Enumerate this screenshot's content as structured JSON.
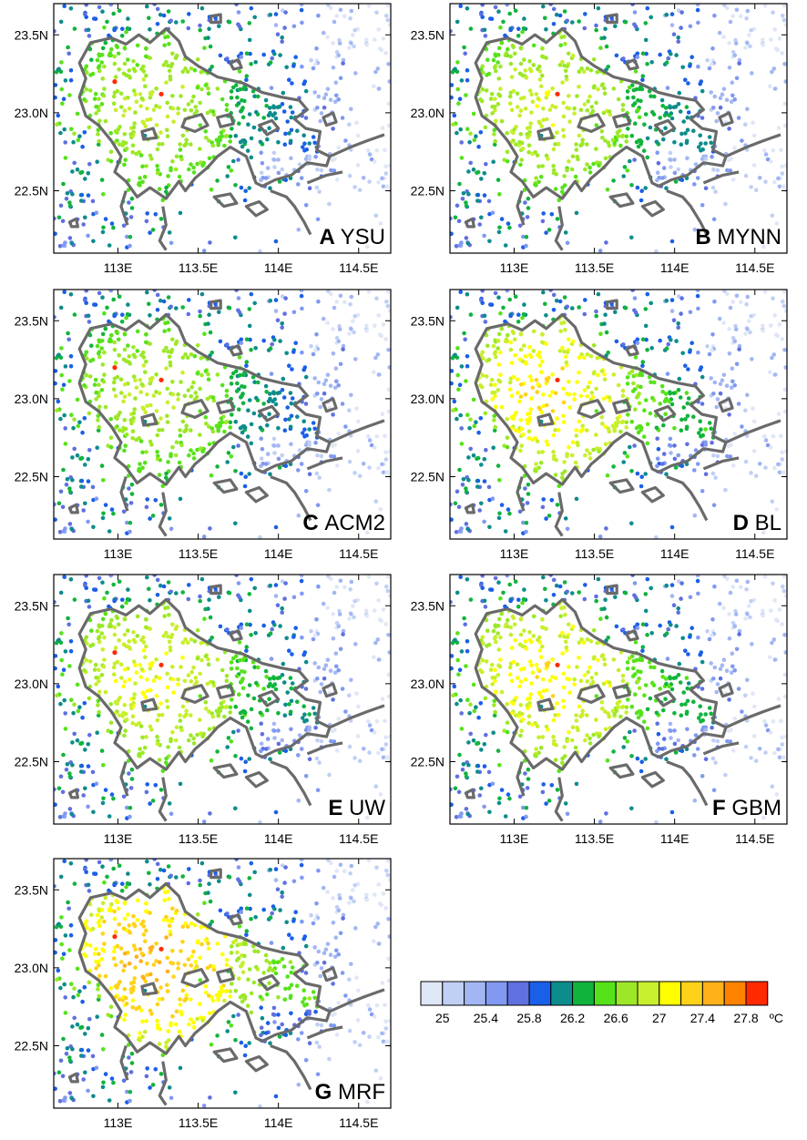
{
  "chart_data": {
    "type": "scatter",
    "description_note": "",
    "x_ticks": [
      "113E",
      "113.5E",
      "114E",
      "114.5E"
    ],
    "x_tick_values": [
      113,
      113.5,
      114,
      114.5
    ],
    "y_ticks": [
      "23.5N",
      "23.0N",
      "22.5N"
    ],
    "y_tick_values": [
      23.5,
      23.0,
      22.5
    ],
    "xlim": [
      112.6,
      114.7
    ],
    "ylim": [
      22.1,
      23.7
    ],
    "grid": false,
    "panels": [
      {
        "letter": "A",
        "name": "YSU",
        "core_temp": 27.0,
        "red_spots": 2
      },
      {
        "letter": "B",
        "name": "MYNN",
        "core_temp": 27.1,
        "red_spots": 1
      },
      {
        "letter": "C",
        "name": "ACM2",
        "core_temp": 27.0,
        "red_spots": 2
      },
      {
        "letter": "D",
        "name": "BL",
        "core_temp": 27.35,
        "red_spots": 1
      },
      {
        "letter": "E",
        "name": "UW",
        "core_temp": 27.2,
        "red_spots": 2
      },
      {
        "letter": "F",
        "name": "GBM",
        "core_temp": 27.3,
        "red_spots": 1
      },
      {
        "letter": "G",
        "name": "MRF",
        "core_temp": 27.55,
        "red_spots": 2
      }
    ],
    "colorbar": {
      "labels": [
        "25",
        "25.4",
        "25.8",
        "26.2",
        "26.6",
        "27",
        "27.4",
        "27.8"
      ],
      "unit": "ºC",
      "colors": [
        "#dfe6f6",
        "#c0cff4",
        "#a2b6f3",
        "#8199f0",
        "#5f70e0",
        "#1a5fe8",
        "#0d8c8c",
        "#10b43c",
        "#56e21a",
        "#9ce828",
        "#c7ef2d",
        "#ffff00",
        "#ffd21a",
        "#ffb01a",
        "#ff8200",
        "#ff2a00"
      ]
    }
  }
}
